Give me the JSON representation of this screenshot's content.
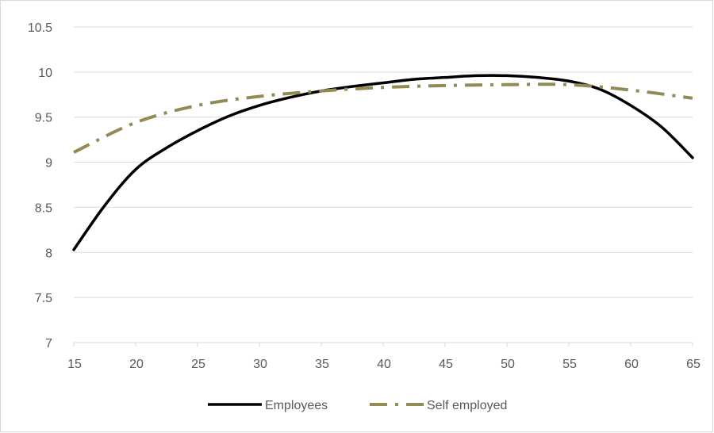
{
  "chart_data": {
    "type": "line",
    "title": "",
    "xlabel": "",
    "ylabel": "",
    "xlim": [
      15,
      65
    ],
    "ylim": [
      7,
      10.5
    ],
    "xticks": [
      15,
      20,
      25,
      30,
      35,
      40,
      45,
      50,
      55,
      60,
      65
    ],
    "yticks": [
      7,
      7.5,
      8,
      8.5,
      9,
      9.5,
      10,
      10.5
    ],
    "grid": "horizontal",
    "legend_position": "bottom",
    "series": [
      {
        "name": "Employees",
        "color": "#000000",
        "style": "solid",
        "x": [
          15,
          17.5,
          20,
          22.5,
          25,
          27.5,
          30,
          32.5,
          35,
          37.5,
          40,
          42.5,
          45,
          47.5,
          50,
          52.5,
          55,
          57.5,
          60,
          62.5,
          65
        ],
        "y": [
          8.03,
          8.52,
          8.92,
          9.16,
          9.35,
          9.51,
          9.63,
          9.72,
          9.79,
          9.84,
          9.88,
          9.92,
          9.94,
          9.96,
          9.96,
          9.94,
          9.9,
          9.81,
          9.63,
          9.39,
          9.05
        ]
      },
      {
        "name": "Self employed",
        "color": "#948a54",
        "style": "dash-dot",
        "x": [
          15,
          20,
          25,
          30,
          35,
          40,
          45,
          50,
          55,
          60,
          65
        ],
        "y": [
          9.11,
          9.44,
          9.63,
          9.73,
          9.79,
          9.83,
          9.85,
          9.86,
          9.86,
          9.8,
          9.71
        ]
      }
    ]
  }
}
